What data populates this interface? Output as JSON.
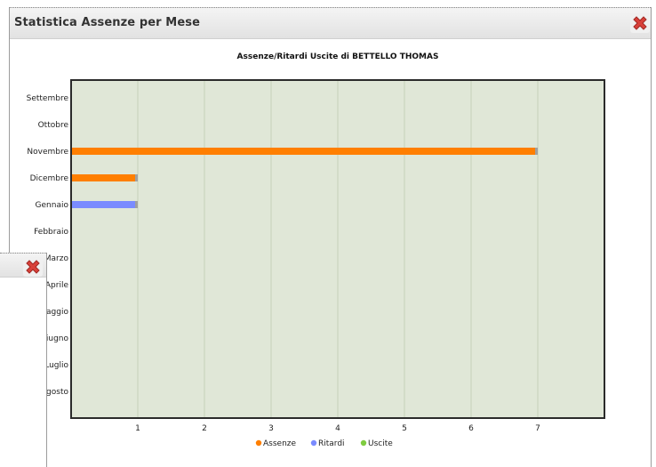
{
  "window": {
    "title": "Statistica Assenze per Mese"
  },
  "colors": {
    "plot_background": "#e0e7d7",
    "grid": "#c6d1ba",
    "assenze": "#ff7f00",
    "ritardi": "#7a8bff",
    "uscite": "#7fcc40"
  },
  "chart_data": {
    "type": "bar",
    "orientation": "horizontal",
    "title": "Assenze/Ritardi Uscite di BETTELLO THOMAS",
    "categories": [
      "Settembre",
      "Ottobre",
      "Novembre",
      "Dicembre",
      "Gennaio",
      "Febbraio",
      "Marzo",
      "Aprile",
      "Maggio",
      "Giugno",
      "Luglio",
      "Agosto"
    ],
    "series": [
      {
        "name": "Assenze",
        "values": [
          0,
          0,
          7,
          1,
          0,
          0,
          0,
          0,
          0,
          0,
          0,
          0
        ]
      },
      {
        "name": "Ritardi",
        "values": [
          0,
          0,
          0,
          0,
          1,
          0,
          0,
          0,
          0,
          0,
          0,
          0
        ]
      },
      {
        "name": "Uscite",
        "values": [
          0,
          0,
          0,
          0,
          0,
          0,
          0,
          0,
          0,
          0,
          0,
          0
        ]
      }
    ],
    "xticks": [
      1,
      2,
      3,
      4,
      5,
      6,
      7
    ],
    "xlim": [
      0,
      8
    ],
    "grid": true,
    "legend_position": "bottom"
  }
}
